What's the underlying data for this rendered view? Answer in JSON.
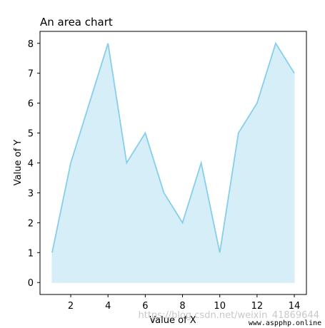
{
  "chart_data": {
    "type": "area",
    "title": "An area chart",
    "xlabel": "Value of X",
    "ylabel": "Value of Y",
    "x": [
      1,
      2,
      3,
      4,
      5,
      6,
      7,
      8,
      9,
      10,
      11,
      12,
      13,
      14
    ],
    "values": [
      1,
      4,
      6,
      8,
      4,
      5,
      3,
      2,
      4,
      1,
      5,
      6,
      8,
      7
    ],
    "xlim": [
      0.35,
      14.65
    ],
    "ylim": [
      -0.4,
      8.4
    ],
    "xticks": [
      2,
      4,
      6,
      8,
      10,
      12,
      14
    ],
    "yticks": [
      0,
      1,
      2,
      3,
      4,
      5,
      6,
      7,
      8
    ],
    "fill_baseline": 0,
    "line_color": "#87ceeb",
    "fill_color": "#d6eef8",
    "grid": false,
    "legend": "none"
  },
  "watermark": {
    "text": "https://blog.csdn.net/weixin_41869644",
    "corner_label": "www.aspphp.online"
  }
}
